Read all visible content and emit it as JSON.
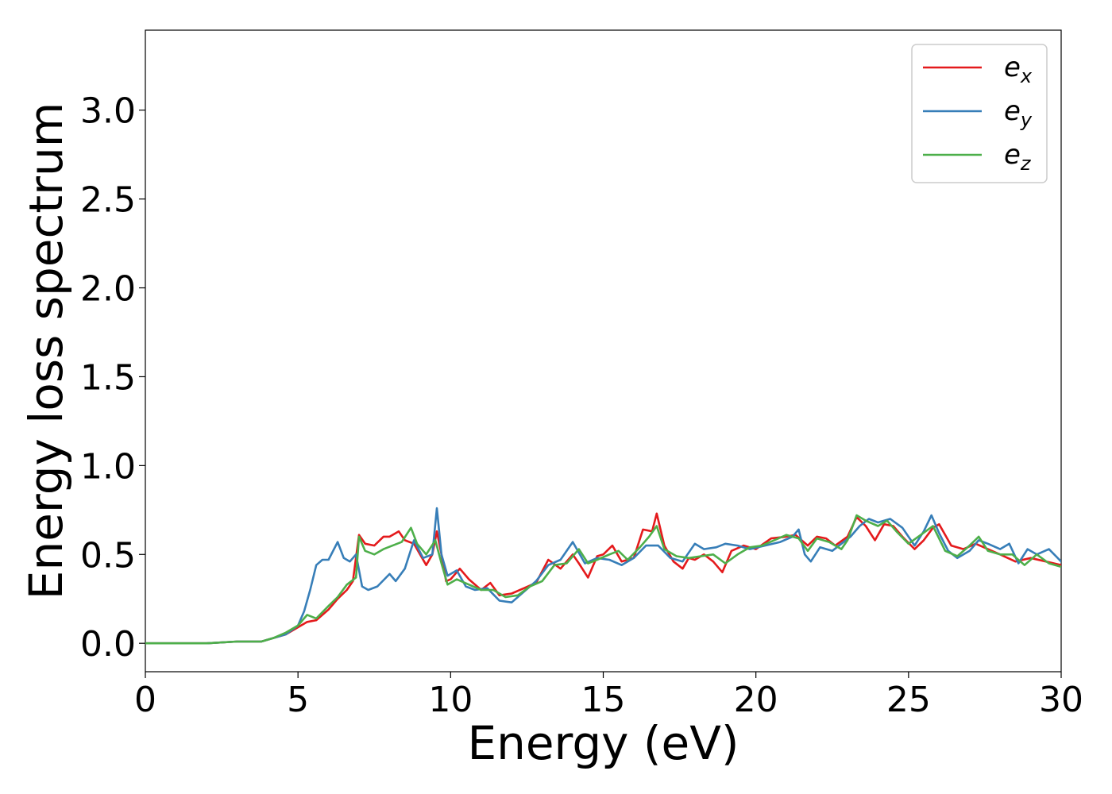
{
  "chart_data": {
    "type": "line",
    "title": "",
    "xlabel": "Energy (eV)",
    "ylabel": "Energy loss spectrum",
    "xlim": [
      0,
      30
    ],
    "ylim": [
      -0.16,
      3.45
    ],
    "xticks": [
      0,
      5,
      10,
      15,
      20,
      25,
      30
    ],
    "xtick_labels": [
      "0",
      "5",
      "10",
      "15",
      "20",
      "25",
      "30"
    ],
    "yticks": [
      0.0,
      0.5,
      1.0,
      1.5,
      2.0,
      2.5,
      3.0
    ],
    "ytick_labels": [
      "0.0",
      "0.5",
      "1.0",
      "1.5",
      "2.0",
      "2.5",
      "3.0"
    ],
    "grid": false,
    "legend_position": "top-right",
    "series": [
      {
        "name": "e",
        "subscript": "x",
        "color": "#e41a1c",
        "points": [
          [
            0,
            0
          ],
          [
            2,
            0
          ],
          [
            3,
            0.01
          ],
          [
            3.8,
            0.01
          ],
          [
            4.2,
            0.03
          ],
          [
            4.6,
            0.05
          ],
          [
            5,
            0.09
          ],
          [
            5.3,
            0.12
          ],
          [
            5.6,
            0.13
          ],
          [
            5.8,
            0.16
          ],
          [
            6,
            0.19
          ],
          [
            6.3,
            0.25
          ],
          [
            6.6,
            0.3
          ],
          [
            6.8,
            0.35
          ],
          [
            7,
            0.61
          ],
          [
            7.2,
            0.56
          ],
          [
            7.5,
            0.55
          ],
          [
            7.8,
            0.6
          ],
          [
            8,
            0.6
          ],
          [
            8.3,
            0.63
          ],
          [
            8.5,
            0.58
          ],
          [
            8.8,
            0.56
          ],
          [
            9,
            0.5
          ],
          [
            9.2,
            0.44
          ],
          [
            9.4,
            0.5
          ],
          [
            9.55,
            0.63
          ],
          [
            9.7,
            0.5
          ],
          [
            9.85,
            0.35
          ],
          [
            10,
            0.36
          ],
          [
            10.3,
            0.42
          ],
          [
            10.6,
            0.36
          ],
          [
            11,
            0.3
          ],
          [
            11.3,
            0.34
          ],
          [
            11.6,
            0.27
          ],
          [
            12,
            0.28
          ],
          [
            12.4,
            0.31
          ],
          [
            12.8,
            0.34
          ],
          [
            13.2,
            0.47
          ],
          [
            13.6,
            0.42
          ],
          [
            14,
            0.5
          ],
          [
            14.2,
            0.45
          ],
          [
            14.5,
            0.37
          ],
          [
            14.8,
            0.49
          ],
          [
            15,
            0.5
          ],
          [
            15.3,
            0.55
          ],
          [
            15.6,
            0.46
          ],
          [
            16,
            0.48
          ],
          [
            16.3,
            0.64
          ],
          [
            16.6,
            0.63
          ],
          [
            16.75,
            0.73
          ],
          [
            17,
            0.55
          ],
          [
            17.3,
            0.46
          ],
          [
            17.6,
            0.42
          ],
          [
            17.8,
            0.48
          ],
          [
            18,
            0.47
          ],
          [
            18.3,
            0.5
          ],
          [
            18.6,
            0.46
          ],
          [
            18.9,
            0.4
          ],
          [
            19.2,
            0.52
          ],
          [
            19.6,
            0.55
          ],
          [
            20,
            0.53
          ],
          [
            20.5,
            0.59
          ],
          [
            21,
            0.6
          ],
          [
            21.3,
            0.61
          ],
          [
            21.7,
            0.55
          ],
          [
            22,
            0.6
          ],
          [
            22.3,
            0.59
          ],
          [
            22.6,
            0.55
          ],
          [
            23,
            0.6
          ],
          [
            23.3,
            0.71
          ],
          [
            23.6,
            0.66
          ],
          [
            23.9,
            0.58
          ],
          [
            24.2,
            0.67
          ],
          [
            24.5,
            0.66
          ],
          [
            24.8,
            0.6
          ],
          [
            25.2,
            0.53
          ],
          [
            25.5,
            0.58
          ],
          [
            25.8,
            0.65
          ],
          [
            26,
            0.67
          ],
          [
            26.4,
            0.55
          ],
          [
            26.8,
            0.53
          ],
          [
            27.2,
            0.56
          ],
          [
            27.6,
            0.53
          ],
          [
            28,
            0.5
          ],
          [
            28.5,
            0.46
          ],
          [
            29,
            0.48
          ],
          [
            29.5,
            0.46
          ],
          [
            30,
            0.44
          ]
        ]
      },
      {
        "name": "e",
        "subscript": "y",
        "color": "#377eb8",
        "points": [
          [
            0,
            0
          ],
          [
            2,
            0
          ],
          [
            3,
            0.01
          ],
          [
            3.8,
            0.01
          ],
          [
            4.2,
            0.03
          ],
          [
            4.6,
            0.05
          ],
          [
            5,
            0.1
          ],
          [
            5.2,
            0.18
          ],
          [
            5.4,
            0.3
          ],
          [
            5.6,
            0.44
          ],
          [
            5.8,
            0.47
          ],
          [
            6,
            0.47
          ],
          [
            6.3,
            0.57
          ],
          [
            6.5,
            0.48
          ],
          [
            6.7,
            0.46
          ],
          [
            6.9,
            0.5
          ],
          [
            7.1,
            0.32
          ],
          [
            7.3,
            0.3
          ],
          [
            7.6,
            0.32
          ],
          [
            8,
            0.39
          ],
          [
            8.2,
            0.35
          ],
          [
            8.5,
            0.42
          ],
          [
            8.8,
            0.58
          ],
          [
            9.1,
            0.48
          ],
          [
            9.4,
            0.5
          ],
          [
            9.55,
            0.76
          ],
          [
            9.7,
            0.5
          ],
          [
            9.9,
            0.38
          ],
          [
            10.2,
            0.41
          ],
          [
            10.5,
            0.32
          ],
          [
            10.8,
            0.3
          ],
          [
            11.2,
            0.31
          ],
          [
            11.6,
            0.24
          ],
          [
            12,
            0.23
          ],
          [
            12.4,
            0.29
          ],
          [
            12.8,
            0.35
          ],
          [
            13.2,
            0.44
          ],
          [
            13.6,
            0.47
          ],
          [
            14,
            0.57
          ],
          [
            14.4,
            0.45
          ],
          [
            14.8,
            0.48
          ],
          [
            15.2,
            0.47
          ],
          [
            15.6,
            0.44
          ],
          [
            16,
            0.48
          ],
          [
            16.4,
            0.55
          ],
          [
            16.8,
            0.55
          ],
          [
            17.2,
            0.48
          ],
          [
            17.6,
            0.46
          ],
          [
            18,
            0.56
          ],
          [
            18.3,
            0.53
          ],
          [
            18.7,
            0.54
          ],
          [
            19,
            0.56
          ],
          [
            19.4,
            0.55
          ],
          [
            19.8,
            0.53
          ],
          [
            20.3,
            0.55
          ],
          [
            20.8,
            0.57
          ],
          [
            21.2,
            0.6
          ],
          [
            21.4,
            0.64
          ],
          [
            21.6,
            0.5
          ],
          [
            21.8,
            0.46
          ],
          [
            22.1,
            0.54
          ],
          [
            22.5,
            0.52
          ],
          [
            22.8,
            0.56
          ],
          [
            23.1,
            0.6
          ],
          [
            23.4,
            0.66
          ],
          [
            23.7,
            0.7
          ],
          [
            24,
            0.68
          ],
          [
            24.4,
            0.7
          ],
          [
            24.8,
            0.65
          ],
          [
            25.2,
            0.55
          ],
          [
            25.5,
            0.63
          ],
          [
            25.75,
            0.72
          ],
          [
            26,
            0.62
          ],
          [
            26.3,
            0.52
          ],
          [
            26.6,
            0.48
          ],
          [
            27,
            0.52
          ],
          [
            27.3,
            0.58
          ],
          [
            27.6,
            0.56
          ],
          [
            28,
            0.53
          ],
          [
            28.3,
            0.56
          ],
          [
            28.6,
            0.45
          ],
          [
            28.9,
            0.53
          ],
          [
            29.2,
            0.5
          ],
          [
            29.6,
            0.53
          ],
          [
            30,
            0.46
          ]
        ]
      },
      {
        "name": "e",
        "subscript": "z",
        "color": "#4daf4a",
        "points": [
          [
            0,
            0
          ],
          [
            2,
            0
          ],
          [
            3,
            0.01
          ],
          [
            3.8,
            0.01
          ],
          [
            4.2,
            0.03
          ],
          [
            4.6,
            0.06
          ],
          [
            5,
            0.1
          ],
          [
            5.3,
            0.16
          ],
          [
            5.6,
            0.14
          ],
          [
            6,
            0.21
          ],
          [
            6.3,
            0.26
          ],
          [
            6.6,
            0.33
          ],
          [
            6.9,
            0.37
          ],
          [
            7,
            0.6
          ],
          [
            7.2,
            0.52
          ],
          [
            7.5,
            0.5
          ],
          [
            7.8,
            0.53
          ],
          [
            8.1,
            0.55
          ],
          [
            8.4,
            0.57
          ],
          [
            8.7,
            0.65
          ],
          [
            8.9,
            0.56
          ],
          [
            9.2,
            0.5
          ],
          [
            9.5,
            0.58
          ],
          [
            9.7,
            0.45
          ],
          [
            9.9,
            0.33
          ],
          [
            10.2,
            0.36
          ],
          [
            10.6,
            0.33
          ],
          [
            11,
            0.3
          ],
          [
            11.4,
            0.3
          ],
          [
            11.8,
            0.26
          ],
          [
            12.2,
            0.27
          ],
          [
            12.6,
            0.32
          ],
          [
            13,
            0.35
          ],
          [
            13.4,
            0.44
          ],
          [
            13.8,
            0.45
          ],
          [
            14.2,
            0.53
          ],
          [
            14.5,
            0.45
          ],
          [
            14.8,
            0.47
          ],
          [
            15.2,
            0.5
          ],
          [
            15.5,
            0.52
          ],
          [
            15.8,
            0.47
          ],
          [
            16.2,
            0.54
          ],
          [
            16.5,
            0.6
          ],
          [
            16.75,
            0.66
          ],
          [
            17,
            0.53
          ],
          [
            17.4,
            0.49
          ],
          [
            17.8,
            0.48
          ],
          [
            18.2,
            0.49
          ],
          [
            18.6,
            0.5
          ],
          [
            19,
            0.45
          ],
          [
            19.4,
            0.5
          ],
          [
            19.8,
            0.54
          ],
          [
            20.2,
            0.55
          ],
          [
            20.6,
            0.58
          ],
          [
            21,
            0.61
          ],
          [
            21.4,
            0.59
          ],
          [
            21.7,
            0.52
          ],
          [
            22,
            0.59
          ],
          [
            22.4,
            0.57
          ],
          [
            22.8,
            0.53
          ],
          [
            23,
            0.58
          ],
          [
            23.3,
            0.72
          ],
          [
            23.6,
            0.69
          ],
          [
            24,
            0.66
          ],
          [
            24.3,
            0.69
          ],
          [
            24.6,
            0.63
          ],
          [
            25,
            0.56
          ],
          [
            25.4,
            0.61
          ],
          [
            25.8,
            0.66
          ],
          [
            26.2,
            0.52
          ],
          [
            26.6,
            0.49
          ],
          [
            27,
            0.55
          ],
          [
            27.3,
            0.6
          ],
          [
            27.6,
            0.52
          ],
          [
            28,
            0.5
          ],
          [
            28.4,
            0.5
          ],
          [
            28.8,
            0.44
          ],
          [
            29.2,
            0.5
          ],
          [
            29.6,
            0.45
          ],
          [
            30,
            0.43
          ]
        ]
      }
    ]
  }
}
